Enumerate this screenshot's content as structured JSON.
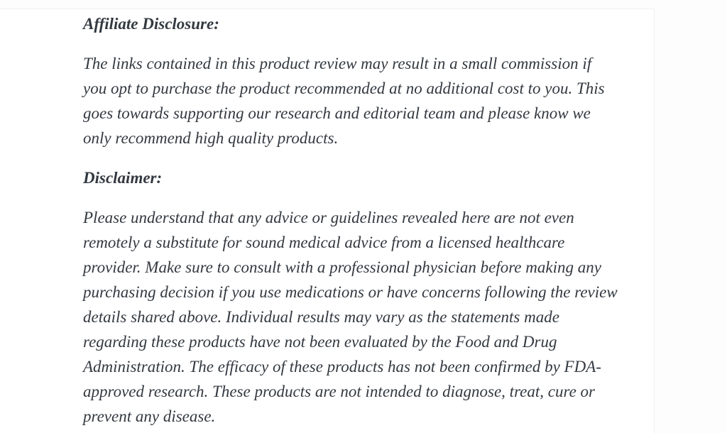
{
  "document": {
    "colors": {
      "text": "#333940",
      "page_background": "#fdfdfd",
      "card_background": "#ffffff",
      "card_border": "#f0f0f0"
    },
    "sections": [
      {
        "heading": "Affiliate Disclosure:",
        "lines": [
          "The links contained in this product review may result in a small commission if",
          "you opt to purchase the product recommended at no additional cost to you. This",
          "goes towards supporting our research and editorial team and please know we",
          "only recommend high quality products."
        ]
      },
      {
        "heading": "Disclaimer:",
        "lines": [
          "Please understand that any advice or guidelines revealed here are not even",
          "remotely a substitute for sound medical advice from a licensed healthcare",
          "provider. Make sure to consult with a professional physician before making any",
          "purchasing decision if you use medications or have concerns following the review",
          "details shared above. Individual results may vary as the statements made",
          "regarding these products have not been evaluated by the Food and Drug",
          "Administration. The efficacy of these products has not been confirmed by FDA-",
          "approved research. These products are not intended to diagnose, treat, cure or",
          "prevent any disease."
        ]
      }
    ]
  }
}
